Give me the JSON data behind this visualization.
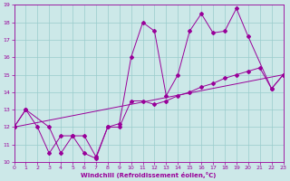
{
  "bg_color": "#cce8e8",
  "line_color": "#990099",
  "grid_color": "#99cccc",
  "xlim": [
    0,
    23
  ],
  "ylim": [
    10,
    19
  ],
  "xticks": [
    0,
    1,
    2,
    3,
    4,
    5,
    6,
    7,
    8,
    9,
    10,
    11,
    12,
    13,
    14,
    15,
    16,
    17,
    18,
    19,
    20,
    21,
    22,
    23
  ],
  "yticks": [
    10,
    11,
    12,
    13,
    14,
    15,
    16,
    17,
    18,
    19
  ],
  "xlabel": "Windchill (Refroidissement éolien,°C)",
  "line1_x": [
    0,
    1,
    2,
    3,
    4,
    5,
    6,
    7,
    8,
    9,
    10,
    11,
    12,
    13,
    14,
    15,
    16,
    17,
    18,
    19,
    20,
    21,
    22,
    23
  ],
  "line1_y": [
    12,
    13,
    12,
    10.5,
    11.5,
    11.5,
    10.5,
    10.2,
    12,
    12,
    13.5,
    13.5,
    13.3,
    13.5,
    13.8,
    14.0,
    14.3,
    14.5,
    14.8,
    15.0,
    15.2,
    15.4,
    14.2,
    15.0
  ],
  "line2_x": [
    0,
    1,
    3,
    4,
    5,
    6,
    7,
    8,
    9,
    10,
    11,
    12,
    13,
    14,
    15,
    16,
    17,
    18,
    19,
    20,
    22,
    23
  ],
  "line2_y": [
    12,
    13,
    12,
    10.5,
    11.5,
    11.5,
    10.3,
    12,
    12.2,
    16,
    18,
    17.5,
    13.8,
    15.0,
    17.5,
    18.5,
    17.4,
    17.5,
    18.8,
    17.2,
    14.2,
    15.0
  ],
  "line3_x": [
    0,
    23
  ],
  "line3_y": [
    12,
    15
  ]
}
